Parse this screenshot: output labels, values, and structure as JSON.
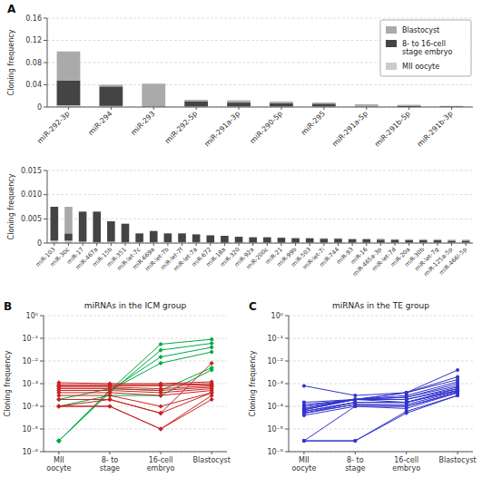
{
  "chart_data": [
    {
      "type": "bar",
      "stacked": true,
      "y_label": "Cloning frequency",
      "annotations": [
        "A"
      ],
      "categories": [
        "miR-292-3p",
        "miR-294",
        "miR-293",
        "miR-292-5p",
        "miR-291a-3p",
        "miR-290-5p",
        "miR-295",
        "miR-291a-5p",
        "miR-291b-5p",
        "miR-291b-3p"
      ],
      "series": [
        {
          "name": "MII oocyte",
          "color": "#cccccc",
          "values": [
            0.003,
            0.002,
            0.0,
            0.001,
            0.001,
            0.001,
            0.001,
            0.001,
            0.0,
            0.0
          ]
        },
        {
          "name": "8- to 16-cell\nstage embryo",
          "color": "#444444",
          "values": [
            0.045,
            0.035,
            0.0,
            0.009,
            0.007,
            0.006,
            0.005,
            0.001,
            0.002,
            0.001
          ]
        },
        {
          "name": "Blastocyst",
          "color": "#aaaaaa",
          "values": [
            0.052,
            0.003,
            0.042,
            0.003,
            0.004,
            0.003,
            0.002,
            0.003,
            0.002,
            0.001
          ]
        }
      ],
      "ylim": [
        0,
        0.16
      ],
      "yticks": [
        0,
        0.04,
        0.08,
        0.12,
        0.16
      ],
      "grid": true,
      "legend": "upper right"
    },
    {
      "type": "bar",
      "stacked": true,
      "y_label": "Cloning frequency",
      "categories": [
        "miR-103",
        "miR-30c",
        "miR-17",
        "miR-467a",
        "miR-15b",
        "miR-351",
        "miR-let-7c",
        "miR-669a",
        "miR-let-7b",
        "miR-let-7f",
        "miR-let-7a",
        "miR-672",
        "miR-18a",
        "miR-320",
        "miR-92a",
        "miR-200c",
        "miR-21",
        "miR-99b",
        "miR-503",
        "miR-let-7i",
        "miR-744",
        "miR-93",
        "miR-16",
        "miR-465a-3p",
        "miR-let-7d",
        "miR-20a",
        "miR-30b",
        "miR-let-7g",
        "miR-125a-5p",
        "miR-466l-5p"
      ],
      "series": [
        {
          "color": "#cccccc",
          "values": [
            0.0005,
            0.0005,
            0.0003,
            0.0002,
            0.0003,
            0.0002,
            0.0002,
            0.0002,
            0.0002,
            0.0002,
            0.0002,
            0.0001,
            0.0001,
            0.0001,
            0.0001,
            0.0001,
            0.0001,
            0.0001,
            0.0001,
            0.0001,
            0.0001,
            0.0001,
            0.0001,
            0.0001,
            0.0001,
            0.0001,
            0.0001,
            0.0001,
            0.0001,
            0.0001
          ]
        },
        {
          "color": "#444444",
          "values": [
            0.007,
            0.0015,
            0.0062,
            0.0063,
            0.0042,
            0.0038,
            0.0018,
            0.0023,
            0.0018,
            0.0018,
            0.0016,
            0.0015,
            0.0014,
            0.0012,
            0.0011,
            0.0011,
            0.001,
            0.0009,
            0.0009,
            0.0008,
            0.0008,
            0.0007,
            0.0007,
            0.0006,
            0.0006,
            0.0005,
            0.0005,
            0.0005,
            0.0004,
            0.0004
          ]
        },
        {
          "color": "#aaaaaa",
          "values": [
            0.0,
            0.0055,
            0.0,
            0.0,
            0.0,
            0.0,
            0.0,
            0.0,
            0.0,
            0.0,
            0.0,
            0.0,
            0.0,
            0.0,
            0.0,
            0.0,
            0.0,
            0.0001,
            0.0,
            0.0001,
            0.0001,
            0.0001,
            0.0001,
            0.0002,
            0.0001,
            0.0002,
            0.0002,
            0.0002,
            0.0002,
            0.0002
          ]
        }
      ],
      "ylim": [
        0,
        0.015
      ],
      "yticks": [
        0,
        0.005,
        {
          "value": 0.01,
          "label": "0.010"
        },
        0.015
      ],
      "grid": true
    },
    {
      "type": "line",
      "title": "miRNAs in the ICM group",
      "y_label": "Cloning frequency",
      "annotations": [
        "B"
      ],
      "categories": [
        "MII\noocyte",
        "8- to\nstage",
        "16-cell\nembryо",
        "Blastocyst"
      ],
      "log": "y",
      "ylim": [
        1e-06,
        1
      ],
      "yticks": [
        {
          "value": 1e-06,
          "label": "10⁻⁶"
        },
        {
          "value": 1e-05,
          "label": "10⁻⁵"
        },
        {
          "value": 0.0001,
          "label": "10⁻⁴"
        },
        {
          "value": 0.001,
          "label": "10⁻³"
        },
        {
          "value": 0.01,
          "label": "10⁻²"
        },
        {
          "value": 0.1,
          "label": "10⁻¹"
        },
        {
          "value": 1,
          "label": "10⁰"
        }
      ],
      "grid": true,
      "series": [
        {
          "color": "#00aa44",
          "marker": "diamond",
          "values": [
            3e-06,
            0.0005,
            0.055,
            0.09
          ]
        },
        {
          "color": "#00aa44",
          "marker": "diamond",
          "values": [
            3e-06,
            0.0004,
            0.03,
            0.06
          ]
        },
        {
          "color": "#00aa44",
          "marker": "diamond",
          "values": [
            3e-06,
            0.0005,
            0.015,
            0.04
          ]
        },
        {
          "color": "#00aa44",
          "marker": "diamond",
          "values": [
            3e-06,
            0.0005,
            0.008,
            0.025
          ]
        },
        {
          "color": "#00aa44",
          "marker": "diamond",
          "values": [
            0.0002,
            0.0006,
            0.0005,
            0.005
          ]
        },
        {
          "color": "#00aa44",
          "marker": "diamond",
          "values": [
            0.0001,
            0.0003,
            0.0003,
            0.004
          ]
        },
        {
          "color": "#cc2222",
          "marker": "diamond",
          "values": [
            0.0011,
            0.001,
            0.001,
            0.0012
          ]
        },
        {
          "color": "#cc2222",
          "marker": "diamond",
          "values": [
            0.0009,
            0.0009,
            0.0009,
            0.001
          ]
        },
        {
          "color": "#cc2222",
          "marker": "diamond",
          "values": [
            0.0008,
            0.0008,
            0.0008,
            0.0009
          ]
        },
        {
          "color": "#cc2222",
          "marker": "diamond",
          "values": [
            0.0007,
            0.0007,
            0.0006,
            0.0008
          ]
        },
        {
          "color": "#cc2222",
          "marker": "diamond",
          "values": [
            0.0006,
            0.0006,
            0.0005,
            0.0007
          ]
        },
        {
          "color": "#cc2222",
          "marker": "diamond",
          "values": [
            0.0005,
            0.0005,
            0.0004,
            0.0006
          ]
        },
        {
          "color": "#cc2222",
          "marker": "diamond",
          "values": [
            0.0004,
            0.0004,
            0.0003,
            0.0005
          ]
        },
        {
          "color": "#cc2222",
          "marker": "diamond",
          "values": [
            0.0003,
            0.0003,
            0.0001,
            0.0004
          ]
        },
        {
          "color": "#cc2222",
          "marker": "diamond",
          "values": [
            0.0002,
            0.0002,
            5e-05,
            0.0004
          ]
        },
        {
          "color": "#cc2222",
          "marker": "diamond",
          "values": [
            0.0001,
            0.0002,
            5e-05,
            0.008
          ]
        },
        {
          "color": "#cc2222",
          "marker": "diamond",
          "values": [
            0.0001,
            0.0001,
            1e-05,
            0.0003
          ]
        },
        {
          "color": "#cc2222",
          "marker": "diamond",
          "values": [
            0.0001,
            0.0001,
            1e-05,
            0.0002
          ]
        }
      ]
    },
    {
      "type": "line",
      "title": "miRNAs in the TE group",
      "y_label": "Cloning frequency",
      "annotations": [
        "C"
      ],
      "categories": [
        "MII\noocyte",
        "8- to\nstage",
        "16-cell\nembryо",
        "Blastocyst"
      ],
      "log": "y",
      "ylim": [
        1e-06,
        1
      ],
      "yticks": [
        {
          "value": 1e-06,
          "label": "10⁻⁶"
        },
        {
          "value": 1e-05,
          "label": "10⁻⁵"
        },
        {
          "value": 0.0001,
          "label": "10⁻⁴"
        },
        {
          "value": 0.001,
          "label": "10⁻³"
        },
        {
          "value": 0.01,
          "label": "10⁻²"
        },
        {
          "value": 0.1,
          "label": "10⁻¹"
        },
        {
          "value": 1,
          "label": "10⁰"
        }
      ],
      "grid": true,
      "series": [
        {
          "color": "#3333cc",
          "marker": "circle",
          "values": [
            0.0008,
            0.0003,
            0.0004,
            0.004
          ]
        },
        {
          "color": "#3333cc",
          "marker": "circle",
          "values": [
            0.00015,
            0.0002,
            0.0004,
            0.002
          ]
        },
        {
          "color": "#3333cc",
          "marker": "circle",
          "values": [
            0.00012,
            0.0002,
            0.0004,
            0.0015
          ]
        },
        {
          "color": "#3333cc",
          "marker": "circle",
          "values": [
            0.0001,
            0.0002,
            0.0003,
            0.0012
          ]
        },
        {
          "color": "#3333cc",
          "marker": "circle",
          "values": [
            0.0001,
            0.0002,
            0.00025,
            0.001
          ]
        },
        {
          "color": "#3333cc",
          "marker": "circle",
          "values": [
            8e-05,
            0.0002,
            0.00025,
            0.0008
          ]
        },
        {
          "color": "#3333cc",
          "marker": "circle",
          "values": [
            8e-05,
            0.0002,
            0.0002,
            0.0007
          ]
        },
        {
          "color": "#3333cc",
          "marker": "circle",
          "values": [
            7e-05,
            0.0002,
            0.0002,
            0.0006
          ]
        },
        {
          "color": "#3333cc",
          "marker": "circle",
          "values": [
            7e-05,
            0.0002,
            0.00015,
            0.0006
          ]
        },
        {
          "color": "#3333cc",
          "marker": "circle",
          "values": [
            6e-05,
            0.00015,
            0.00015,
            0.0005
          ]
        },
        {
          "color": "#3333cc",
          "marker": "circle",
          "values": [
            6e-05,
            0.00015,
            0.00015,
            0.0005
          ]
        },
        {
          "color": "#3333cc",
          "marker": "circle",
          "values": [
            5e-05,
            0.00015,
            0.00015,
            0.0005
          ]
        },
        {
          "color": "#3333cc",
          "marker": "circle",
          "values": [
            5e-05,
            0.00012,
            0.00012,
            0.00045
          ]
        },
        {
          "color": "#3333cc",
          "marker": "circle",
          "values": [
            5e-05,
            0.00012,
            0.0001,
            0.0004
          ]
        },
        {
          "color": "#3333cc",
          "marker": "circle",
          "values": [
            4e-05,
            0.0001,
            0.0001,
            0.0004
          ]
        },
        {
          "color": "#3333cc",
          "marker": "circle",
          "values": [
            3e-06,
            0.0001,
            8e-05,
            0.0004
          ]
        },
        {
          "color": "#3333cc",
          "marker": "circle",
          "values": [
            3e-06,
            3e-06,
            6e-05,
            0.0003
          ]
        },
        {
          "color": "#3333cc",
          "marker": "circle",
          "values": [
            3e-06,
            3e-06,
            5e-05,
            0.0003
          ]
        }
      ]
    }
  ]
}
